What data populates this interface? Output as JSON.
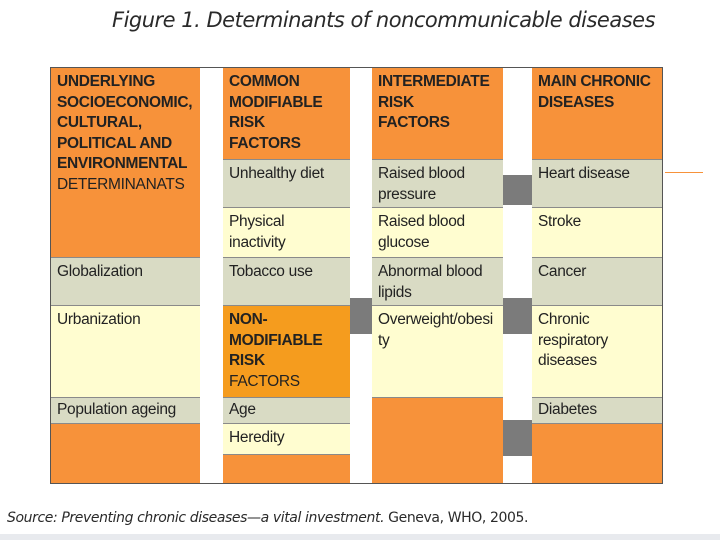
{
  "title": "Figure 1. Determinants of noncommunicable diseases",
  "source": {
    "italic": "Source: Preventing chronic diseases—a vital investment.",
    "plain": " Geneva, WHO, 2005."
  },
  "columns": {
    "underlying": {
      "header": [
        "UNDERLYING",
        "SOCIOECONOMIC,",
        "CULTURAL,",
        "POLITICAL AND",
        "ENVIRONMENTAL",
        "DETERMINANATS"
      ],
      "items": [
        "Globalization",
        "Urbanization",
        "Population ageing"
      ]
    },
    "modifiable": {
      "header": [
        "COMMON",
        "MODIFIABLE",
        "RISK",
        "FACTORS"
      ],
      "items": [
        "Unhealthy diet",
        "Physical inactivity",
        "Tobacco use"
      ],
      "non_header": [
        "NON-",
        "MODIFIABLE",
        "RISK",
        "FACTORS"
      ],
      "non_items": [
        "Age",
        "Heredity"
      ]
    },
    "intermediate": {
      "header": [
        "INTERMEDIATE",
        "RISK",
        "FACTORS"
      ],
      "items": [
        "Raised blood pressure",
        "Raised blood glucose",
        "Abnormal blood lipids",
        "Overweight/obesi ty"
      ]
    },
    "chronic": {
      "header": [
        "MAIN CHRONIC",
        "DISEASES"
      ],
      "items": [
        "Heart disease",
        "Stroke",
        "Cancer",
        "Chronic respiratory diseases",
        "Diabetes"
      ]
    }
  },
  "colors": {
    "orange": "#f7923a",
    "dark_orange": "#f59c1e",
    "gray_green": "#d9dbc4",
    "cream": "#fffdd0",
    "connector": "#7b7b7b"
  }
}
